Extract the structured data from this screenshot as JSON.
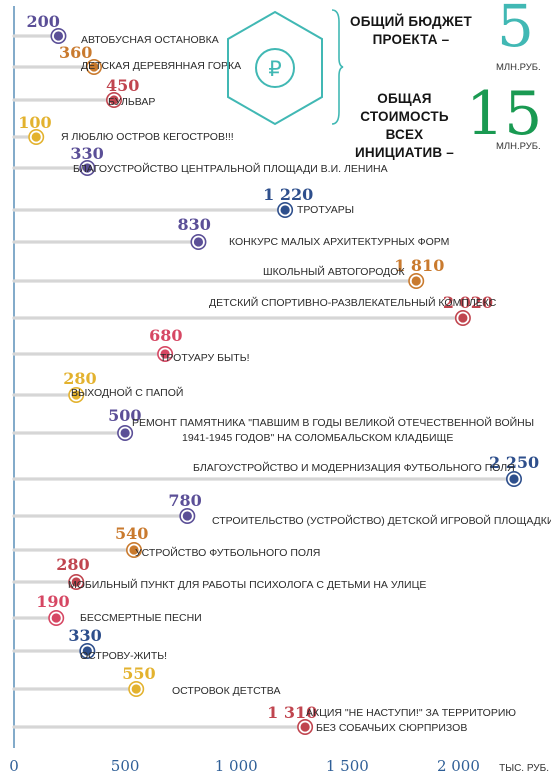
{
  "colors": {
    "axis": "#5a8fb8",
    "grid": "#d6d6d6",
    "purple": "#5b4f97",
    "orange": "#c97a2e",
    "red": "#c0454f",
    "yellow": "#e3b22e",
    "navy": "#2e4f8c",
    "pink": "#d64763",
    "teal": "#41b8b4",
    "green": "#1a9a52"
  },
  "info": {
    "budget_label": "ОБЩИЙ БЮДЖЕТ ПРОЕКТА –",
    "budget_value": "5",
    "budget_unit": "МЛН.РУБ.",
    "total_label": "ОБЩАЯ СТОИМОСТЬ ВСЕХ ИНИЦИАТИВ –",
    "total_value": "15",
    "total_unit": "МЛН.РУБ.",
    "icon": "ruble-hexagon-icon"
  },
  "chart_data": {
    "type": "dot-bar",
    "x_unit": "ТЫС. РУБ.",
    "xlim": [
      0,
      2250
    ],
    "x_ticks": [
      0,
      500,
      1000,
      1500,
      2000
    ],
    "x_tick_labels": [
      "0",
      "500",
      "1 000",
      "1 500",
      "2 000"
    ],
    "items": [
      {
        "label": "АВТОБУСНАЯ ОСТАНОВКА",
        "value": 200,
        "value_label": "200",
        "color": "purple"
      },
      {
        "label": "ДЕТСКАЯ ДЕРЕВЯННАЯ ГОРКА",
        "value": 360,
        "value_label": "360",
        "color": "orange"
      },
      {
        "label": "БУЛЬВАР",
        "value": 450,
        "value_label": "450",
        "color": "red"
      },
      {
        "label": "Я ЛЮБЛЮ ОСТРОВ КЕГОСТРОВ!!!",
        "value": 100,
        "value_label": "100",
        "color": "yellow"
      },
      {
        "label": "БЛАГОУСТРОЙСТВО ЦЕНТРАЛЬНОЙ ПЛОЩАДИ В.И. ЛЕНИНА",
        "value": 330,
        "value_label": "330",
        "color": "purple"
      },
      {
        "label": "ТРОТУАРЫ",
        "value": 1220,
        "value_label": "1 220",
        "color": "navy"
      },
      {
        "label": "КОНКУРС МАЛЫХ АРХИТЕКТУРНЫХ ФОРМ",
        "value": 830,
        "value_label": "830",
        "color": "purple"
      },
      {
        "label": "ШКОЛЬНЫЙ АВТОГОРОДОК",
        "value": 1810,
        "value_label": "1 810",
        "color": "orange"
      },
      {
        "label": "ДЕТСКИЙ СПОРТИВНО-РАЗВЛЕКАТЕЛЬНЫЙ КОМПЛЕКС",
        "value": 2020,
        "value_label": "2 020",
        "color": "red"
      },
      {
        "label": "ТРОТУАРУ БЫТЬ!",
        "value": 680,
        "value_label": "680",
        "color": "pink"
      },
      {
        "label": "ВЫХОДНОЙ С ПАПОЙ",
        "value": 280,
        "value_label": "280",
        "color": "yellow"
      },
      {
        "label": "РЕМОНТ ПАМЯТНИКА \"ПАВШИМ В ГОДЫ ВЕЛИКОЙ ОТЕЧЕСТВЕННОЙ ВОЙНЫ 1941-1945 ГОДОВ\" НА СОЛОМБАЛЬСКОМ КЛАДБИЩЕ",
        "value": 500,
        "value_label": "500",
        "color": "purple"
      },
      {
        "label": "БЛАГОУСТРОЙСТВО И МОДЕРНИЗАЦИЯ ФУТБОЛЬНОГО ПОЛЯ",
        "value": 2250,
        "value_label": "2 250",
        "color": "navy"
      },
      {
        "label": "СТРОИТЕЛЬСТВО (УСТРОЙСТВО) ДЕТСКОЙ ИГРОВОЙ ПЛОЩАДКИ",
        "value": 780,
        "value_label": "780",
        "color": "purple"
      },
      {
        "label": "УСТРОЙСТВО ФУТБОЛЬНОГО ПОЛЯ",
        "value": 540,
        "value_label": "540",
        "color": "orange"
      },
      {
        "label": "МОБИЛЬНЫЙ ПУНКТ ДЛЯ РАБОТЫ ПСИХОЛОГА С ДЕТЬМИ НА УЛИЦЕ",
        "value": 280,
        "value_label": "280",
        "color": "red"
      },
      {
        "label": "БЕССМЕРТНЫЕ ПЕСНИ",
        "value": 190,
        "value_label": "190",
        "color": "pink"
      },
      {
        "label": "ОСТРОВУ-ЖИТЬ!",
        "value": 330,
        "value_label": "330",
        "color": "navy"
      },
      {
        "label": "ОСТРОВОК ДЕТСТВА",
        "value": 550,
        "value_label": "550",
        "color": "yellow"
      },
      {
        "label": "АКЦИЯ \"НЕ НАСТУПИ!\" ЗА ТЕРРИТОРИЮ БЕЗ СОБАЧЬИХ СЮРПРИЗОВ",
        "value": 1310,
        "value_label": "1 310",
        "color": "red"
      }
    ]
  }
}
